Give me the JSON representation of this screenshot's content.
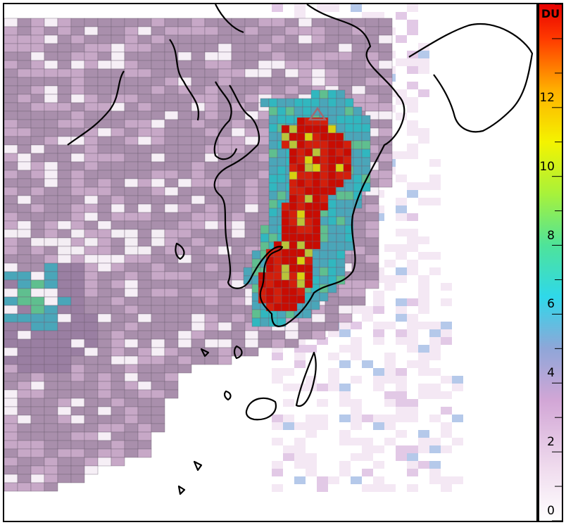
{
  "map": {
    "description_free": true,
    "cell_palette": [
      "#f3e9f3",
      "#c7a8c7",
      "#a98fac",
      "#9a7fa2",
      "#4aa6b9",
      "#31b7bf",
      "#5fbf8f",
      "#b9c43a",
      "#d8d010",
      "#d31f0b",
      "#c80c02"
    ],
    "coast_color": "#000000"
  },
  "colorbar": {
    "unit": "DU",
    "min": 0,
    "max": 15,
    "tick_labels": [
      "0",
      "2",
      "4",
      "6",
      "8",
      "10",
      "12"
    ],
    "tick_values": [
      0,
      2,
      4,
      6,
      8,
      10,
      12
    ],
    "stops": [
      {
        "v": 0,
        "c": "#ffffff"
      },
      {
        "v": 1.5,
        "c": "#f0dcee"
      },
      {
        "v": 3.5,
        "c": "#d2a6d6"
      },
      {
        "v": 5,
        "c": "#8fa6d8"
      },
      {
        "v": 6.5,
        "c": "#2fd8ea"
      },
      {
        "v": 8,
        "c": "#4ee39a"
      },
      {
        "v": 9.5,
        "c": "#a8f23a"
      },
      {
        "v": 11,
        "c": "#f4f300"
      },
      {
        "v": 12.5,
        "c": "#ffb000"
      },
      {
        "v": 14,
        "c": "#ff3a00"
      },
      {
        "v": 15,
        "c": "#e80000"
      }
    ]
  }
}
